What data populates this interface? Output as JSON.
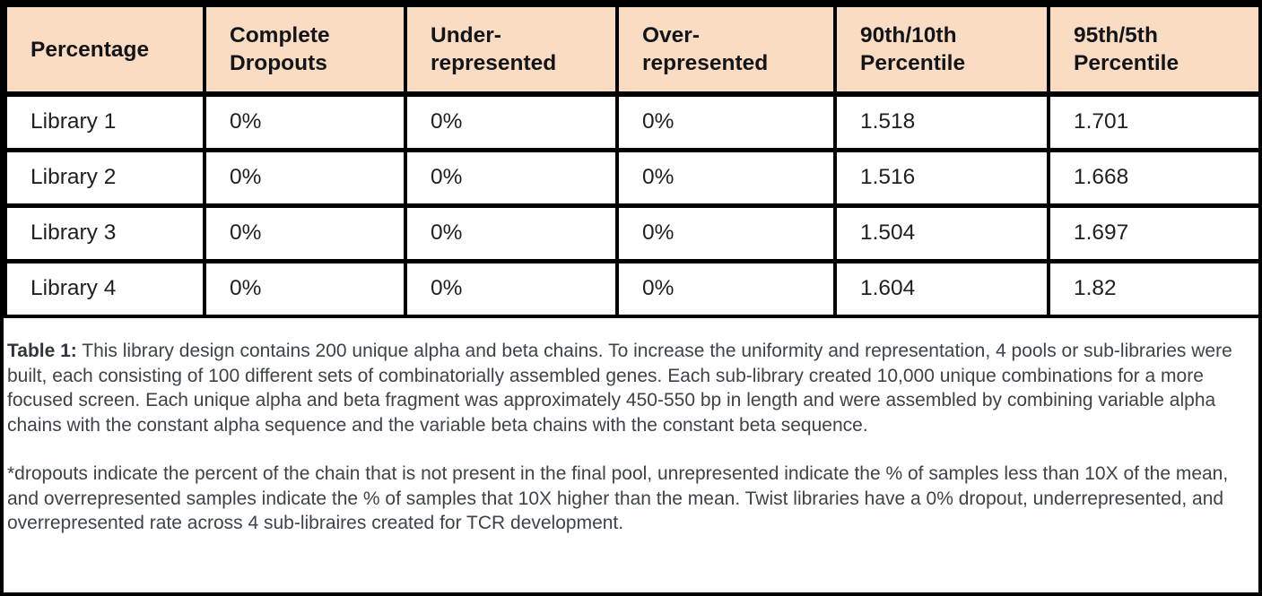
{
  "colors": {
    "header_bg": "#fadcc3",
    "border": "#000000",
    "table_text": "#1d2023",
    "caption_text": "#3c434a",
    "page_bg": "#ffffff"
  },
  "table": {
    "columns": [
      "Percentage",
      "Complete Dropouts",
      "Under-represented",
      "Over-represented",
      "90th/10th Percentile",
      "95th/5th Percentile"
    ],
    "rows": [
      {
        "cells": [
          "Library 1",
          "0%",
          "0%",
          "0%",
          "1.518",
          "1.701"
        ]
      },
      {
        "cells": [
          "Library 2",
          "0%",
          "0%",
          "0%",
          "1.516",
          "1.668"
        ]
      },
      {
        "cells": [
          "Library 3",
          "0%",
          "0%",
          "0%",
          "1.504",
          "1.697"
        ]
      },
      {
        "cells": [
          "Library 4",
          "0%",
          "0%",
          "0%",
          "1.604",
          "1.82"
        ]
      }
    ]
  },
  "caption": {
    "label": "Table 1:",
    "body": " This library design contains 200 unique alpha and beta chains. To increase the uniformity and representation, 4 pools or sub-libraries were built, each consisting of 100 different sets of combinatorially assembled genes. Each sub-library created 10,000 unique combinations for a more focused screen. Each unique alpha and beta fragment was approximately 450-550 bp in length and were assembled by combining variable alpha chains with the constant alpha sequence and the variable beta chains with the constant beta sequence.",
    "footnote": "*dropouts indicate the percent of the chain that is not present in the final pool, unrepresented indicate the % of samples less than 10X of the mean, and overrepresented samples indicate the % of samples that 10X higher than the mean. Twist libraries have a 0% dropout, underrepresented, and overrepresented rate across 4 sub-libraires created for TCR development."
  },
  "chart_data": {
    "type": "table",
    "title": "Table 1",
    "columns": [
      "Percentage",
      "Complete Dropouts",
      "Under-represented",
      "Over-represented",
      "90th/10th Percentile",
      "95th/5th Percentile"
    ],
    "rows": [
      [
        "Library 1",
        "0%",
        "0%",
        "0%",
        1.518,
        1.701
      ],
      [
        "Library 2",
        "0%",
        "0%",
        "0%",
        1.516,
        1.668
      ],
      [
        "Library 3",
        "0%",
        "0%",
        "0%",
        1.504,
        1.697
      ],
      [
        "Library 4",
        "0%",
        "0%",
        "0%",
        1.604,
        1.82
      ]
    ]
  }
}
